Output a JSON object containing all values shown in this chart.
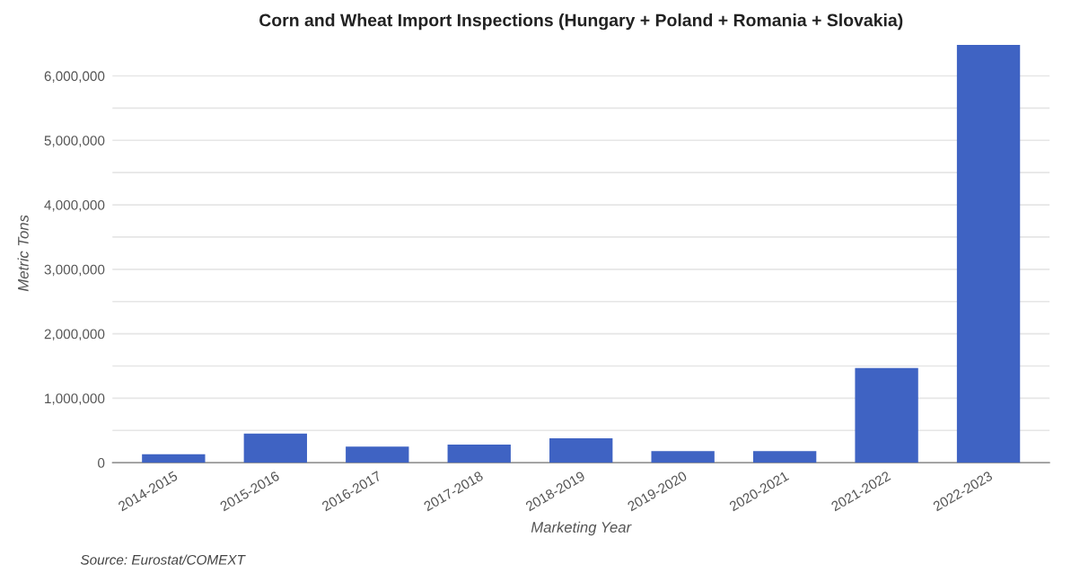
{
  "chart_data": {
    "type": "bar",
    "title": "Corn and Wheat Import Inspections (Hungary + Poland + Romania + Slovakia)",
    "xlabel": "Marketing Year",
    "ylabel": "Metric Tons",
    "categories": [
      "2014-2015",
      "2015-2016",
      "2016-2017",
      "2017-2018",
      "2018-2019",
      "2019-2020",
      "2020-2021",
      "2021-2022",
      "2022-2023"
    ],
    "values": [
      130000,
      450000,
      250000,
      280000,
      380000,
      180000,
      180000,
      1470000,
      6480000
    ],
    "color": "#3f63c3",
    "ylim": [
      0,
      6500000
    ],
    "yticks": [
      0,
      {
        "value": 500000,
        "label": null
      },
      {
        "value": 1000000,
        "label": "1,000,000"
      },
      {
        "value": 1500000,
        "label": null
      },
      {
        "value": 2000000,
        "label": "2,000,000"
      },
      {
        "value": 2500000,
        "label": null
      },
      {
        "value": 3000000,
        "label": "3,000,000"
      },
      {
        "value": 3500000,
        "label": null
      },
      {
        "value": 4000000,
        "label": "4,000,000"
      },
      {
        "value": 4500000,
        "label": null
      },
      {
        "value": 5000000,
        "label": "5,000,000"
      },
      {
        "value": 5500000,
        "label": null
      },
      {
        "value": 6000000,
        "label": "6,000,000"
      }
    ],
    "grid": "y",
    "legend": false,
    "annotations": [
      "Source: Eurostat/COMEXT"
    ]
  }
}
